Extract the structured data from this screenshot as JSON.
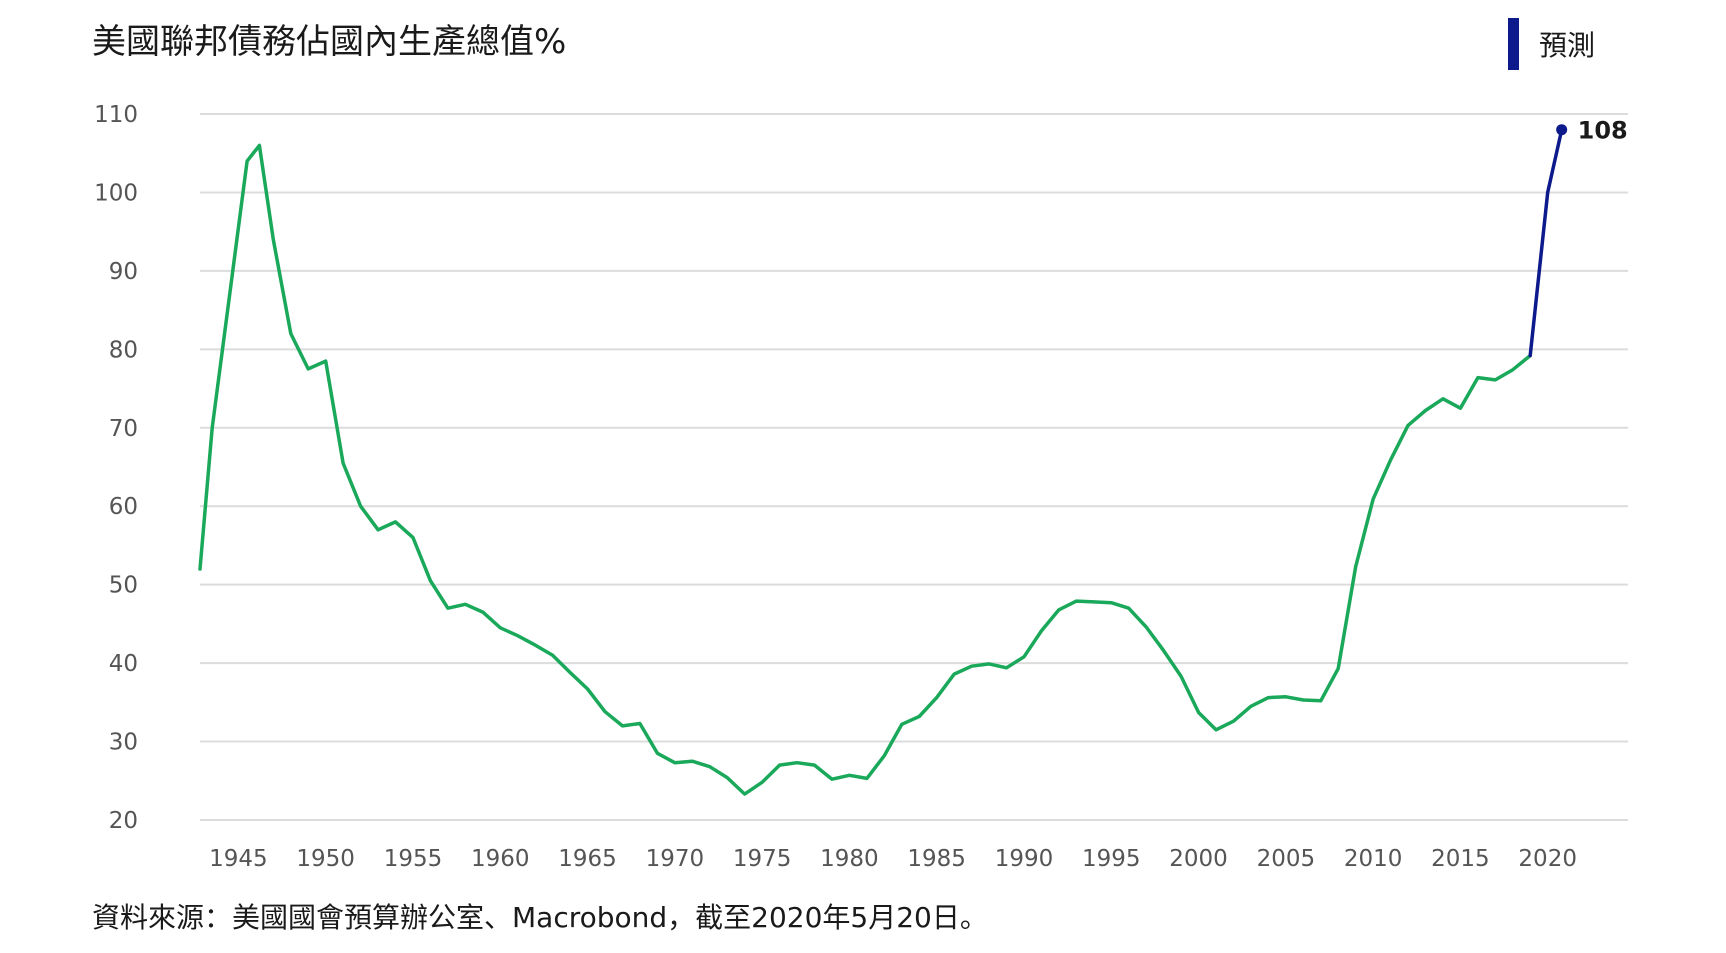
{
  "title": "美國聯邦債務佔國內生產總值%",
  "legend": {
    "label": "預測",
    "color": "#0d1a8c"
  },
  "source": "資料來源：美國國會預算辦公室、Macrobond，截至2020年5月20日。",
  "chart_data": {
    "type": "line",
    "title": "美國聯邦債務佔國內生產總值%",
    "xlim": [
      1942.8,
      2024.6
    ],
    "ylim": [
      20,
      110
    ],
    "y_ticks": [
      110,
      100,
      90,
      80,
      70,
      60,
      50,
      40,
      30,
      20
    ],
    "x_ticks": [
      1945,
      1950,
      1955,
      1960,
      1965,
      1970,
      1975,
      1980,
      1985,
      1990,
      1995,
      2000,
      2005,
      2010,
      2015,
      2020
    ],
    "grid": true,
    "legend_position": "top-right",
    "series": [
      {
        "name": "",
        "color": "#1aa85a",
        "points": [
          [
            1942.8,
            52
          ],
          [
            1943.5,
            70
          ],
          [
            1944.5,
            87
          ],
          [
            1945.5,
            104
          ],
          [
            1946.2,
            106
          ],
          [
            1947,
            94
          ],
          [
            1948,
            82
          ],
          [
            1949,
            77.5
          ],
          [
            1950,
            78.5
          ],
          [
            1951,
            65.5
          ],
          [
            1952,
            60
          ],
          [
            1953,
            57
          ],
          [
            1954,
            58
          ],
          [
            1955,
            56
          ],
          [
            1956,
            50.5
          ],
          [
            1957,
            47
          ],
          [
            1958,
            47.5
          ],
          [
            1959,
            46.5
          ],
          [
            1960,
            44.5
          ],
          [
            1961,
            43.5
          ],
          [
            1962,
            42.3
          ],
          [
            1963,
            41
          ],
          [
            1964,
            38.8
          ],
          [
            1965,
            36.7
          ],
          [
            1966,
            33.8
          ],
          [
            1967,
            32
          ],
          [
            1968,
            32.3
          ],
          [
            1969,
            28.5
          ],
          [
            1970,
            27.3
          ],
          [
            1971,
            27.5
          ],
          [
            1972,
            26.8
          ],
          [
            1973,
            25.4
          ],
          [
            1974,
            23.3
          ],
          [
            1975,
            24.8
          ],
          [
            1976,
            27
          ],
          [
            1977,
            27.3
          ],
          [
            1978,
            27
          ],
          [
            1979,
            25.2
          ],
          [
            1980,
            25.7
          ],
          [
            1981,
            25.3
          ],
          [
            1982,
            28.2
          ],
          [
            1983,
            32.2
          ],
          [
            1984,
            33.2
          ],
          [
            1985,
            35.6
          ],
          [
            1986,
            38.6
          ],
          [
            1987,
            39.6
          ],
          [
            1988,
            39.9
          ],
          [
            1989,
            39.4
          ],
          [
            1990,
            40.8
          ],
          [
            1991,
            44.1
          ],
          [
            1992,
            46.8
          ],
          [
            1993,
            47.9
          ],
          [
            1994,
            47.8
          ],
          [
            1995,
            47.7
          ],
          [
            1996,
            47
          ],
          [
            1997,
            44.6
          ],
          [
            1998,
            41.6
          ],
          [
            1999,
            38.3
          ],
          [
            2000,
            33.7
          ],
          [
            2001,
            31.5
          ],
          [
            2002,
            32.6
          ],
          [
            2003,
            34.5
          ],
          [
            2004,
            35.6
          ],
          [
            2005,
            35.7
          ],
          [
            2006,
            35.3
          ],
          [
            2007,
            35.2
          ],
          [
            2008,
            39.3
          ],
          [
            2009,
            52.3
          ],
          [
            2010,
            60.9
          ],
          [
            2011,
            65.9
          ],
          [
            2012,
            70.3
          ],
          [
            2013,
            72.2
          ],
          [
            2014,
            73.7
          ],
          [
            2015,
            72.5
          ],
          [
            2016,
            76.4
          ],
          [
            2017,
            76.1
          ],
          [
            2018,
            77.4
          ],
          [
            2019,
            79.2
          ]
        ]
      },
      {
        "name": "預測",
        "color": "#0d1a8c",
        "points": [
          [
            2019,
            79.2
          ],
          [
            2020,
            100
          ],
          [
            2020.8,
            108
          ]
        ],
        "end_label": "108"
      }
    ]
  }
}
